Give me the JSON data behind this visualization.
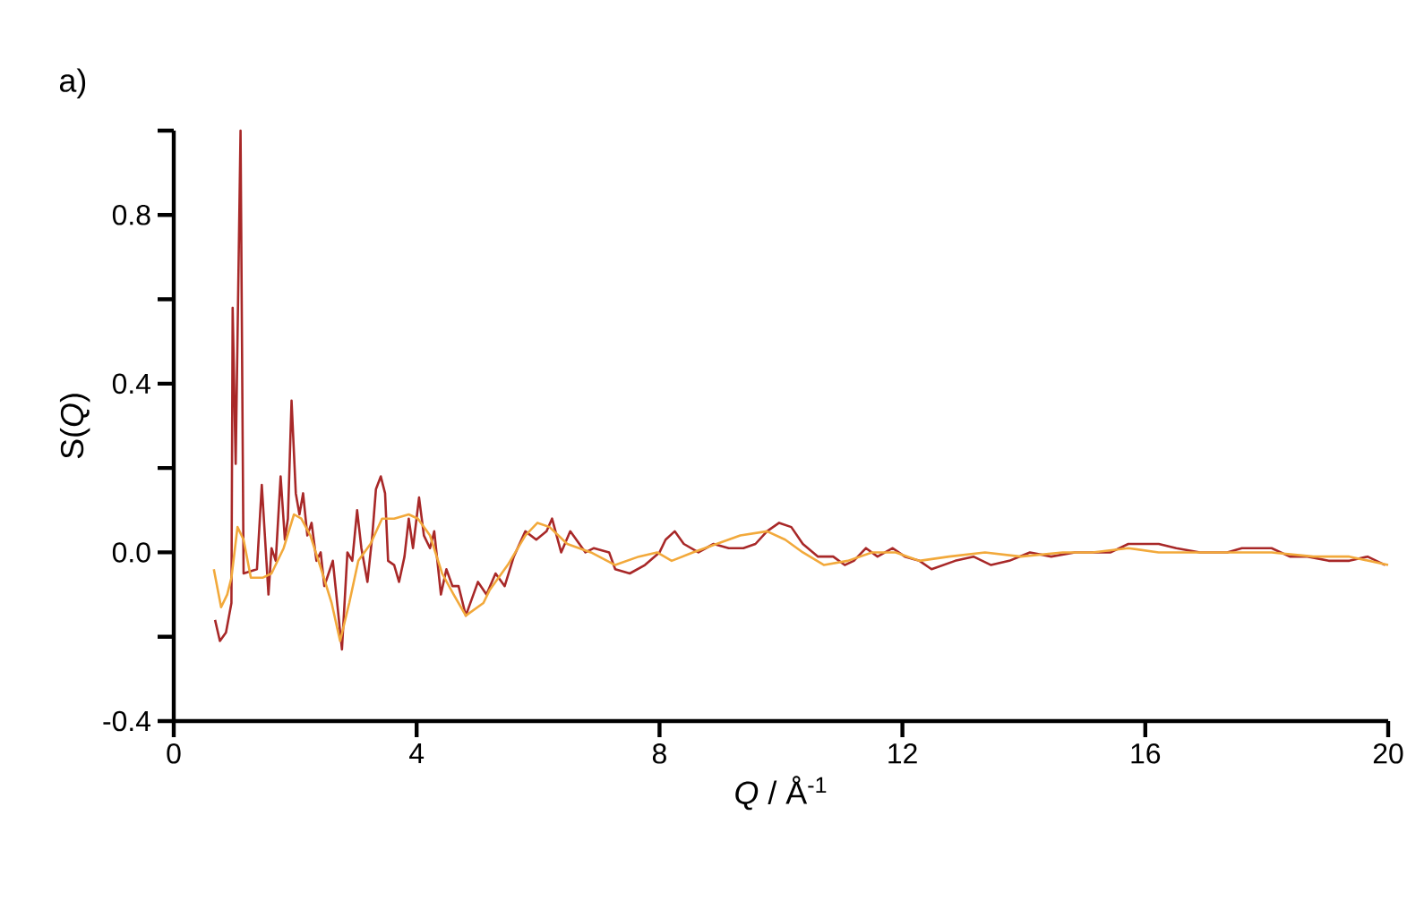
{
  "chart_data": {
    "type": "line",
    "xlabel": "*Q* / Å$^{-1}$",
    "ylabel": "S(*Q*)",
    "annotations": [
      "a)"
    ],
    "xlim": [
      0,
      20
    ],
    "ylim": [
      -0.4,
      1.0
    ],
    "xticks": [
      0,
      4,
      8,
      12,
      16,
      20
    ],
    "yticks": [
      -0.4,
      {
        "value": -0.2,
        "label": null
      },
      {
        "value": 0,
        "label": "0.0"
      },
      {
        "value": 0.2,
        "label": null
      },
      0.4,
      {
        "value": 0.6,
        "label": null
      },
      0.8,
      {
        "value": 1.0,
        "label": null
      }
    ],
    "series": [
      {
        "color": "#a82828",
        "x": [
          0.68,
          0.76,
          0.86,
          0.95,
          0.97,
          1.02,
          1.1,
          1.15,
          1.37,
          1.45,
          1.56,
          1.61,
          1.68,
          1.76,
          1.83,
          1.88,
          1.94,
          2.01,
          2.07,
          2.13,
          2.2,
          2.27,
          2.35,
          2.42,
          2.48,
          2.55,
          2.62,
          2.67,
          2.77,
          2.86,
          2.94,
          3.02,
          3.09,
          3.19,
          3.27,
          3.33,
          3.41,
          3.48,
          3.53,
          3.63,
          3.71,
          3.8,
          3.87,
          3.94,
          4.04,
          4.12,
          4.22,
          4.29,
          4.4,
          4.49,
          4.59,
          4.69,
          4.81,
          5.01,
          5.15,
          5.3,
          5.45,
          5.6,
          5.79,
          5.97,
          6.14,
          6.23,
          6.38,
          6.53,
          6.63,
          6.78,
          6.92,
          7.17,
          7.27,
          7.51,
          7.76,
          8.0,
          8.1,
          8.25,
          8.4,
          8.64,
          8.89,
          9.14,
          9.38,
          9.58,
          9.77,
          9.97,
          10.17,
          10.36,
          10.61,
          10.86,
          11.05,
          11.2,
          11.4,
          11.59,
          11.84,
          12.04,
          12.28,
          12.48,
          12.87,
          13.17,
          13.46,
          13.76,
          14.1,
          14.45,
          14.84,
          15.13,
          15.43,
          15.72,
          16.22,
          16.51,
          16.9,
          17.35,
          17.59,
          18.08,
          18.38,
          18.67,
          19.02,
          19.36,
          19.66,
          19.95
        ],
        "values": [
          -0.16,
          -0.21,
          -0.19,
          -0.12,
          0.58,
          0.21,
          1.0,
          -0.05,
          -0.04,
          0.16,
          -0.1,
          0.01,
          -0.02,
          0.18,
          0.03,
          0.08,
          0.36,
          0.14,
          0.09,
          0.14,
          0.04,
          0.07,
          -0.02,
          0.0,
          -0.08,
          -0.05,
          -0.02,
          -0.09,
          -0.23,
          0.0,
          -0.02,
          0.1,
          0.01,
          -0.07,
          0.04,
          0.15,
          0.18,
          0.14,
          -0.02,
          -0.03,
          -0.07,
          -0.01,
          0.08,
          0.01,
          0.13,
          0.04,
          0.01,
          0.05,
          -0.1,
          -0.04,
          -0.08,
          -0.08,
          -0.15,
          -0.07,
          -0.1,
          -0.05,
          -0.08,
          -0.01,
          0.05,
          0.03,
          0.05,
          0.08,
          0.0,
          0.05,
          0.03,
          0.0,
          0.01,
          0.0,
          -0.04,
          -0.05,
          -0.03,
          0.0,
          0.03,
          0.05,
          0.02,
          0.0,
          0.02,
          0.01,
          0.01,
          0.02,
          0.05,
          0.07,
          0.06,
          0.02,
          -0.01,
          -0.01,
          -0.03,
          -0.02,
          0.01,
          -0.01,
          0.01,
          -0.01,
          -0.02,
          -0.04,
          -0.02,
          -0.01,
          -0.03,
          -0.02,
          0.0,
          -0.01,
          0.0,
          0.0,
          0.0,
          0.02,
          0.02,
          0.01,
          0.0,
          0.0,
          0.01,
          0.01,
          -0.01,
          -0.01,
          -0.02,
          -0.02,
          -0.01,
          -0.03
        ]
      },
      {
        "color": "#f2a93b",
        "x": [
          0.66,
          0.78,
          0.88,
          0.95,
          1.05,
          1.15,
          1.27,
          1.47,
          1.61,
          1.81,
          1.98,
          2.1,
          2.25,
          2.45,
          2.6,
          2.74,
          2.89,
          3.04,
          3.24,
          3.43,
          3.63,
          3.87,
          4.02,
          4.22,
          4.42,
          4.61,
          4.81,
          5.1,
          5.2,
          5.5,
          5.79,
          5.99,
          6.19,
          6.48,
          6.87,
          7.27,
          7.66,
          7.96,
          8.2,
          8.55,
          8.94,
          9.33,
          9.77,
          10.07,
          10.36,
          10.71,
          11.1,
          11.5,
          11.89,
          12.28,
          12.77,
          13.36,
          13.95,
          14.64,
          15.13,
          15.72,
          16.22,
          16.71,
          17.4,
          18.08,
          18.77,
          19.36,
          20.0
        ],
        "values": [
          -0.04,
          -0.13,
          -0.1,
          -0.06,
          0.06,
          0.03,
          -0.06,
          -0.06,
          -0.05,
          0.01,
          0.09,
          0.08,
          0.04,
          -0.05,
          -0.12,
          -0.21,
          -0.12,
          -0.02,
          0.02,
          0.08,
          0.08,
          0.09,
          0.08,
          0.04,
          -0.05,
          -0.1,
          -0.15,
          -0.12,
          -0.09,
          -0.03,
          0.04,
          0.07,
          0.06,
          0.02,
          0.0,
          -0.03,
          -0.01,
          0.0,
          -0.02,
          0.0,
          0.02,
          0.04,
          0.05,
          0.03,
          0.0,
          -0.03,
          -0.02,
          0.0,
          0.0,
          -0.02,
          -0.01,
          0.0,
          -0.01,
          0.0,
          0.0,
          0.01,
          0.0,
          0.0,
          0.0,
          0.0,
          -0.01,
          -0.01,
          -0.03
        ]
      }
    ]
  }
}
